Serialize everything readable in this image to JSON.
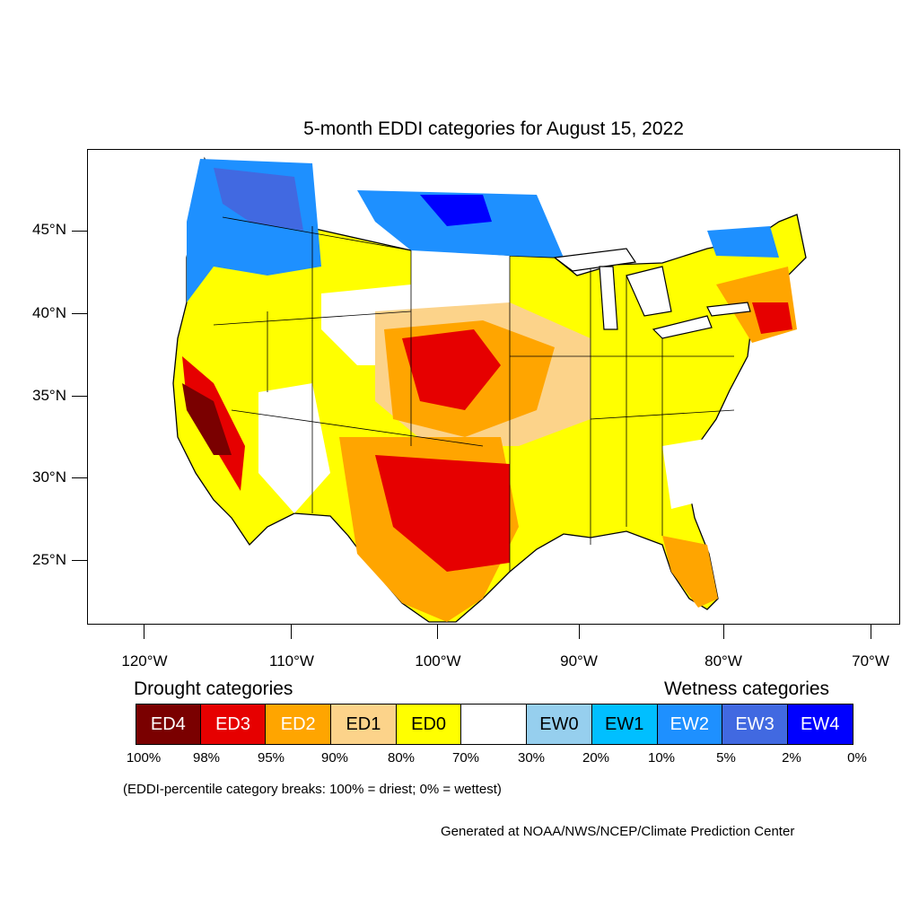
{
  "title": "5-month EDDI categories for August 15, 2022",
  "map": {
    "region": "Contiguous United States",
    "latitude_labels": [
      "45°N",
      "40°N",
      "35°N",
      "30°N",
      "25°N"
    ],
    "longitude_labels": [
      "120°W",
      "110°W",
      "100°W",
      "90°W",
      "80°W",
      "70°W"
    ]
  },
  "legend": {
    "drought_heading": "Drought categories",
    "wetness_heading": "Wetness categories",
    "categories": [
      {
        "label": "ED4",
        "color": "#7a0000",
        "text_color": "#ffffff"
      },
      {
        "label": "ED3",
        "color": "#e60000",
        "text_color": "#ffffff"
      },
      {
        "label": "ED2",
        "color": "#ffa500",
        "text_color": "#ffffff"
      },
      {
        "label": "ED1",
        "color": "#fcd38a",
        "text_color": "#000000"
      },
      {
        "label": "ED0",
        "color": "#ffff00",
        "text_color": "#000000"
      },
      {
        "label": "",
        "color": "#ffffff",
        "text_color": "#000000"
      },
      {
        "label": "EW0",
        "color": "#96cfee",
        "text_color": "#000000"
      },
      {
        "label": "EW1",
        "color": "#00bfff",
        "text_color": "#000000"
      },
      {
        "label": "EW2",
        "color": "#1e90ff",
        "text_color": "#ffffff"
      },
      {
        "label": "EW3",
        "color": "#4169e1",
        "text_color": "#ffffff"
      },
      {
        "label": "EW4",
        "color": "#0000ff",
        "text_color": "#ffffff"
      }
    ],
    "percentiles": [
      "100%",
      "98%",
      "95%",
      "90%",
      "80%",
      "70%",
      "30%",
      "20%",
      "10%",
      "5%",
      "2%",
      "0%"
    ],
    "note": "(EDDI-percentile category breaks: 100% = driest; 0% = wettest)"
  },
  "credit": "Generated at NOAA/NWS/NCEP/Climate Prediction Center"
}
